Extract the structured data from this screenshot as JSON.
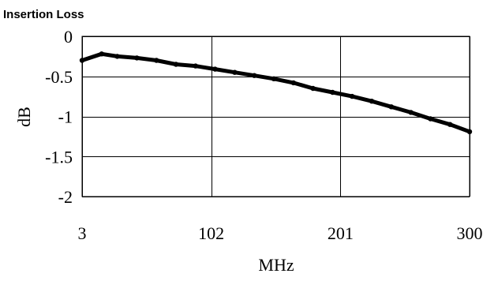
{
  "chart_data": {
    "type": "line",
    "title": "Insertion Loss",
    "xlabel": "MHz",
    "ylabel": "dB",
    "xlim": [
      3,
      300
    ],
    "ylim": [
      -2,
      0
    ],
    "x_ticks": [
      {
        "value": 3,
        "label": "3"
      },
      {
        "value": 102,
        "label": "102"
      },
      {
        "value": 201,
        "label": "201"
      },
      {
        "value": 300,
        "label": "300"
      }
    ],
    "y_ticks": [
      {
        "value": 0,
        "label": "0"
      },
      {
        "value": -0.5,
        "label": "-0.5"
      },
      {
        "value": -1,
        "label": "-1"
      },
      {
        "value": -1.5,
        "label": "-1.5"
      },
      {
        "value": -2,
        "label": "-2"
      }
    ],
    "grid": true,
    "legend": false,
    "series": [
      {
        "color": "#000000",
        "x": [
          3,
          18,
          30,
          45,
          60,
          75,
          90,
          105,
          120,
          135,
          150,
          165,
          180,
          195,
          210,
          225,
          240,
          255,
          270,
          285,
          300
        ],
        "y": [
          -0.3,
          -0.22,
          -0.25,
          -0.27,
          -0.3,
          -0.35,
          -0.37,
          -0.41,
          -0.45,
          -0.49,
          -0.53,
          -0.58,
          -0.65,
          -0.7,
          -0.75,
          -0.81,
          -0.88,
          -0.95,
          -1.03,
          -1.1,
          -1.19
        ]
      }
    ]
  }
}
